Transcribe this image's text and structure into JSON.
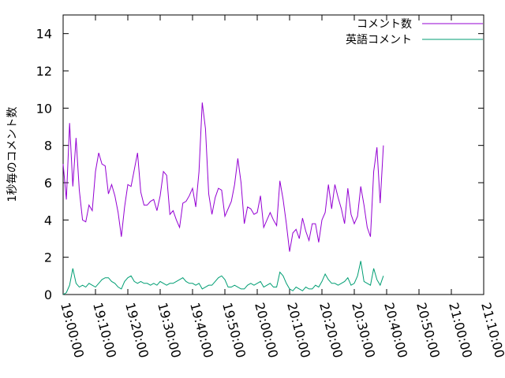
{
  "chart_data": {
    "type": "line",
    "title": "",
    "xlabel": "",
    "ylabel": "1秒毎のコメント数",
    "x_start": "19:00:00",
    "x_step_seconds": 60,
    "xlim": [
      "19:00:00",
      "21:10:00"
    ],
    "ylim": [
      0,
      15
    ],
    "x_ticks": [
      "19:00:00",
      "19:10:00",
      "19:20:00",
      "19:30:00",
      "19:40:00",
      "19:50:00",
      "20:00:00",
      "20:10:00",
      "20:20:00",
      "20:30:00",
      "20:40:00",
      "20:50:00",
      "21:00:00",
      "21:10:00"
    ],
    "y_ticks": [
      "0",
      "2",
      "4",
      "6",
      "8",
      "10",
      "12",
      "14"
    ],
    "grid": false,
    "legend_position": "top-right",
    "series": [
      {
        "name": "コメント数",
        "color": "#9400d3",
        "values": [
          7.0,
          5.1,
          9.2,
          5.8,
          8.4,
          5.6,
          4.0,
          3.9,
          4.8,
          4.5,
          6.6,
          7.6,
          7.0,
          6.9,
          5.4,
          5.9,
          5.3,
          4.4,
          3.1,
          4.7,
          5.9,
          5.8,
          6.7,
          7.6,
          5.5,
          4.8,
          4.8,
          5.0,
          5.1,
          4.5,
          5.3,
          6.6,
          6.4,
          4.3,
          4.5,
          4.0,
          3.6,
          4.9,
          5.0,
          5.3,
          5.7,
          4.7,
          6.6,
          10.3,
          8.9,
          5.4,
          4.3,
          5.2,
          5.7,
          5.6,
          4.2,
          4.6,
          5.0,
          5.9,
          7.3,
          6.0,
          3.8,
          4.7,
          4.6,
          4.3,
          4.4,
          5.3,
          3.6,
          4.0,
          4.4,
          4.0,
          3.7,
          6.1,
          5.1,
          3.8,
          2.3,
          3.3,
          3.5,
          3.0,
          4.1,
          3.4,
          2.9,
          3.8,
          3.8,
          2.8,
          4.0,
          4.4,
          5.9,
          4.6,
          5.9,
          5.2,
          4.6,
          3.8,
          5.7,
          4.3,
          3.8,
          4.2,
          5.8,
          4.8,
          3.6,
          3.1,
          6.6,
          7.9,
          4.9,
          8.0
        ]
      },
      {
        "name": "英語コメント",
        "color": "#009e73",
        "values": [
          0.0,
          0.1,
          0.5,
          1.4,
          0.6,
          0.4,
          0.5,
          0.4,
          0.6,
          0.5,
          0.4,
          0.6,
          0.8,
          0.9,
          0.9,
          0.7,
          0.6,
          0.4,
          0.3,
          0.7,
          0.9,
          1.0,
          0.7,
          0.6,
          0.7,
          0.6,
          0.6,
          0.5,
          0.6,
          0.5,
          0.7,
          0.6,
          0.5,
          0.6,
          0.6,
          0.7,
          0.8,
          0.9,
          0.7,
          0.6,
          0.6,
          0.5,
          0.6,
          0.3,
          0.4,
          0.5,
          0.5,
          0.7,
          0.9,
          1.0,
          0.8,
          0.4,
          0.4,
          0.5,
          0.4,
          0.3,
          0.3,
          0.5,
          0.6,
          0.5,
          0.6,
          0.7,
          0.4,
          0.5,
          0.6,
          0.4,
          0.4,
          1.2,
          1.0,
          0.6,
          0.3,
          0.2,
          0.4,
          0.3,
          0.2,
          0.4,
          0.3,
          0.3,
          0.5,
          0.4,
          0.7,
          1.1,
          0.8,
          0.6,
          0.6,
          0.5,
          0.6,
          0.7,
          0.9,
          0.5,
          0.6,
          1.0,
          1.8,
          0.7,
          0.6,
          0.5,
          1.4,
          0.8,
          0.5,
          1.0
        ]
      }
    ]
  }
}
